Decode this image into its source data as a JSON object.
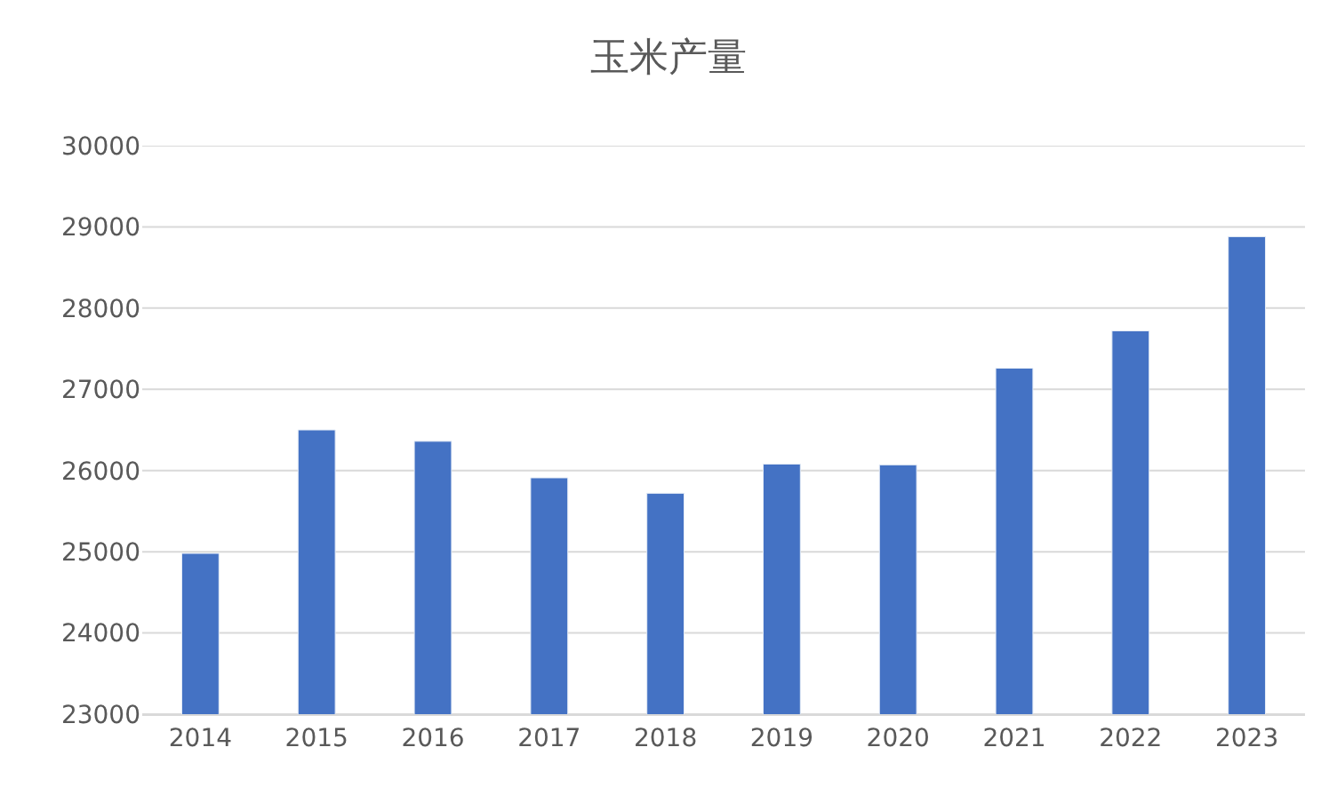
{
  "chart_data": {
    "type": "bar",
    "title": "玉米产量",
    "categories": [
      "2014",
      "2015",
      "2016",
      "2017",
      "2018",
      "2019",
      "2020",
      "2021",
      "2022",
      "2023"
    ],
    "values": [
      24980,
      26500,
      26360,
      25910,
      25720,
      26080,
      26070,
      27260,
      27720,
      28880
    ],
    "color": "#4472c4",
    "ylim": [
      23000,
      30000
    ],
    "yticks": [
      23000,
      24000,
      25000,
      26000,
      27000,
      28000,
      29000,
      30000
    ],
    "grid": "y"
  }
}
